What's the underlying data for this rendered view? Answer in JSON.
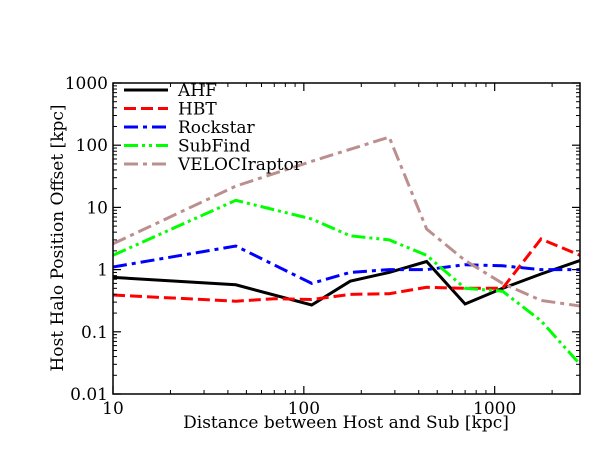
{
  "chart_data": {
    "type": "line",
    "xlabel": "Distance between Host and Sub [kpc]",
    "ylabel": "Host Halo Position Offset [kpc]",
    "x_scale": "log",
    "y_scale": "log",
    "xlim": [
      10,
      2800
    ],
    "ylim": [
      0.01,
      1000
    ],
    "x_ticks": [
      {
        "value": 10,
        "label": "10"
      },
      {
        "value": 100,
        "label": "100"
      },
      {
        "value": 1000,
        "label": "1000"
      }
    ],
    "y_ticks": [
      {
        "value": 0.01,
        "label": "0.01"
      },
      {
        "value": 0.1,
        "label": "0.1"
      },
      {
        "value": 1,
        "label": "1"
      },
      {
        "value": 10,
        "label": "10"
      },
      {
        "value": 100,
        "label": "100"
      },
      {
        "value": 1000,
        "label": "1000"
      }
    ],
    "legend_position": "top-left",
    "grid": false,
    "series": [
      {
        "name": "AHF",
        "color": "#000000",
        "dash": "solid",
        "points": [
          [
            10,
            0.75
          ],
          [
            44,
            0.57
          ],
          [
            110,
            0.27
          ],
          [
            175,
            0.65
          ],
          [
            280,
            0.9
          ],
          [
            440,
            1.35
          ],
          [
            700,
            0.28
          ],
          [
            1100,
            0.5
          ],
          [
            1750,
            0.85
          ],
          [
            2800,
            1.4
          ]
        ]
      },
      {
        "name": "HBT",
        "color": "#ff0000",
        "dash": "dashed",
        "points": [
          [
            10,
            0.39
          ],
          [
            44,
            0.31
          ],
          [
            70,
            0.34
          ],
          [
            110,
            0.33
          ],
          [
            175,
            0.4
          ],
          [
            280,
            0.41
          ],
          [
            440,
            0.52
          ],
          [
            700,
            0.5
          ],
          [
            1100,
            0.5
          ],
          [
            1750,
            3.1
          ],
          [
            2800,
            1.7
          ]
        ]
      },
      {
        "name": "Rockstar",
        "color": "#0000ff",
        "dash": "dashdot",
        "points": [
          [
            10,
            1.1
          ],
          [
            44,
            2.4
          ],
          [
            110,
            0.6
          ],
          [
            175,
            0.9
          ],
          [
            280,
            1.0
          ],
          [
            440,
            1.0
          ],
          [
            700,
            1.2
          ],
          [
            1100,
            1.15
          ],
          [
            1750,
            1.0
          ],
          [
            2800,
            1.0
          ]
        ]
      },
      {
        "name": "SubFind",
        "color": "#00ff00",
        "dash": "dashdotdot",
        "points": [
          [
            10,
            1.7
          ],
          [
            44,
            13
          ],
          [
            110,
            6.5
          ],
          [
            175,
            3.5
          ],
          [
            280,
            3.0
          ],
          [
            440,
            1.7
          ],
          [
            700,
            0.5
          ],
          [
            1100,
            0.45
          ],
          [
            1750,
            0.15
          ],
          [
            2800,
            0.03
          ]
        ]
      },
      {
        "name": "VELOCIraptor",
        "color": "#bc8f8f",
        "dash": "dashdot",
        "points": [
          [
            10,
            2.6
          ],
          [
            44,
            22
          ],
          [
            110,
            55
          ],
          [
            280,
            135
          ],
          [
            440,
            4.5
          ],
          [
            700,
            1.4
          ],
          [
            1100,
            0.6
          ],
          [
            1750,
            0.32
          ],
          [
            2800,
            0.26
          ]
        ]
      }
    ]
  }
}
